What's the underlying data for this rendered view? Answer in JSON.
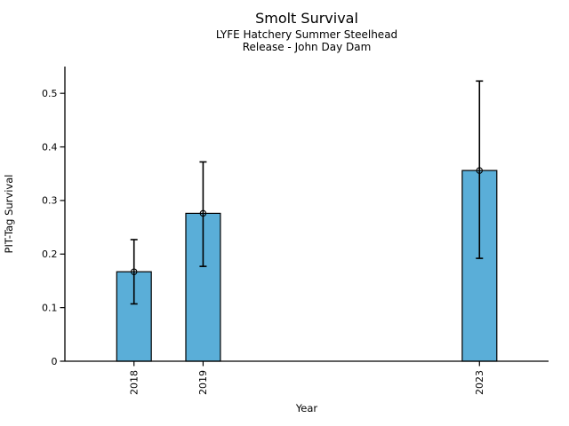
{
  "chart_data": {
    "type": "bar",
    "title": "Smolt Survival",
    "subtitle_lines": [
      "LYFE Hatchery Summer Steelhead",
      "Release - John Day Dam"
    ],
    "xlabel": "Year",
    "ylabel": "PIT-Tag Survival",
    "categories": [
      "2018",
      "2019",
      "2023"
    ],
    "x": [
      2018,
      2019,
      2023
    ],
    "values": [
      0.167,
      0.276,
      0.356
    ],
    "error_low": [
      0.107,
      0.177,
      0.192
    ],
    "error_high": [
      0.227,
      0.372,
      0.523
    ],
    "marker": "open-circle",
    "bar_color": "#5aaed8",
    "bar_edge_color": "#000000",
    "error_color": "#000000",
    "bar_width_years": 0.5,
    "xlim": [
      2017,
      2024
    ],
    "ylim": [
      0,
      0.55
    ],
    "yticks": [
      0,
      0.1,
      0.2,
      0.3,
      0.4,
      0.5
    ],
    "ytick_labels": [
      "0",
      "0.1",
      "0.2",
      "0.3",
      "0.4",
      "0.5"
    ],
    "grid": false,
    "legend": "none",
    "background_color": "#ffffff"
  }
}
